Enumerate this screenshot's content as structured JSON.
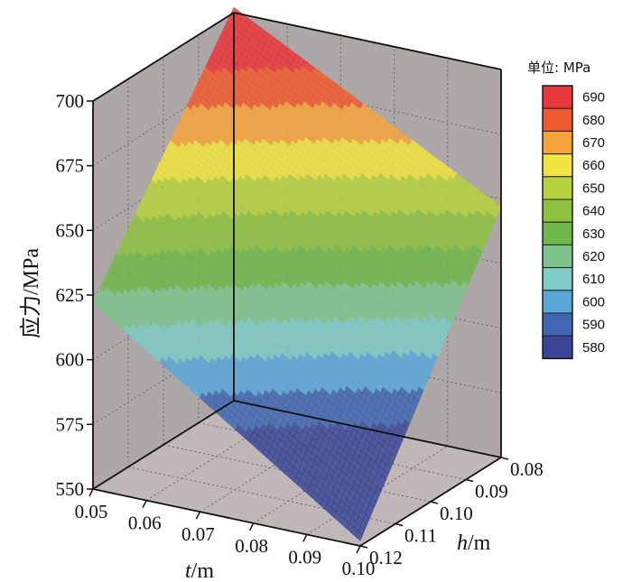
{
  "chart_data": {
    "type": "surface3d",
    "title": "",
    "axes": {
      "z": {
        "label": "应力/MPa",
        "range": [
          550,
          700
        ],
        "ticks": [
          550,
          575,
          600,
          625,
          650,
          675,
          700
        ]
      },
      "t": {
        "label_var": "t",
        "label_unit": "/m",
        "range": [
          0.05,
          0.1
        ],
        "ticks": [
          "0.05",
          "0.06",
          "0.07",
          "0.08",
          "0.09",
          "0.10"
        ]
      },
      "h": {
        "label_var": "h",
        "label_unit": "/m",
        "range": [
          0.08,
          0.12
        ],
        "ticks": [
          "0.08",
          "0.09",
          "0.10",
          "0.11",
          "0.12"
        ]
      }
    },
    "surface": {
      "description_points": [
        {
          "t": 0.05,
          "h": 0.12,
          "stress": 622
        },
        {
          "t": 0.1,
          "h": 0.12,
          "stress": 552
        },
        {
          "t": 0.1,
          "h": 0.08,
          "stress": 647
        },
        {
          "t": 0.05,
          "h": 0.08,
          "stress": 702
        }
      ]
    },
    "legend": {
      "title": "单位: MPa",
      "placement": "right",
      "levels": [
        {
          "value": "690",
          "color": "#e8373a"
        },
        {
          "value": "680",
          "color": "#ef5a30"
        },
        {
          "value": "670",
          "color": "#f5a33c"
        },
        {
          "value": "660",
          "color": "#f2e440"
        },
        {
          "value": "650",
          "color": "#b6d23e"
        },
        {
          "value": "640",
          "color": "#8cc23f"
        },
        {
          "value": "630",
          "color": "#6fb74a"
        },
        {
          "value": "620",
          "color": "#7fc48f"
        },
        {
          "value": "610",
          "color": "#7fcbc6"
        },
        {
          "value": "600",
          "color": "#5ba7d8"
        },
        {
          "value": "590",
          "color": "#3f66b0"
        },
        {
          "value": "580",
          "color": "#3a4596"
        }
      ]
    },
    "grid": true,
    "colors": {
      "walls": "#aea7a7",
      "floor": "#c0b8b8",
      "grid": "#666666"
    }
  }
}
